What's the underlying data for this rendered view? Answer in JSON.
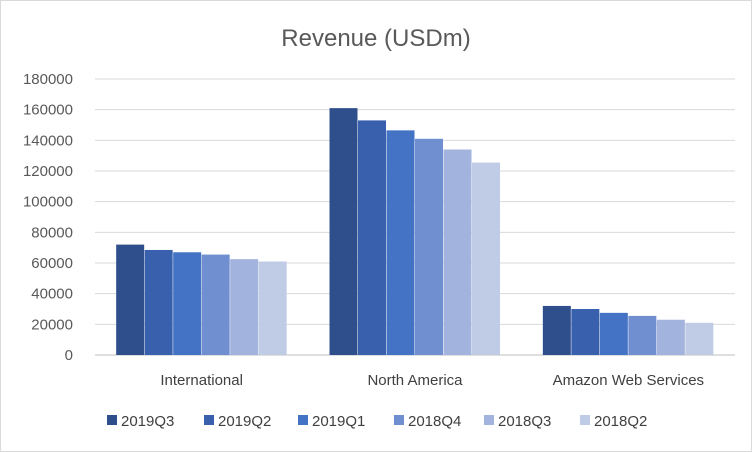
{
  "chart_data": {
    "type": "bar",
    "title": "Revenue (USDm)",
    "xlabel": "",
    "ylabel": "",
    "categories": [
      "International",
      "North America",
      "Amazon Web Services"
    ],
    "ylim": [
      0,
      180000
    ],
    "yticks": [
      "0",
      "20000",
      "40000",
      "60000",
      "80000",
      "100000",
      "120000",
      "140000",
      "160000",
      "180000"
    ],
    "grid": true,
    "legend_position": "bottom",
    "series": [
      {
        "name": "2019Q3",
        "color": "#2f4f8c",
        "values": [
          72000,
          161000,
          32000
        ]
      },
      {
        "name": "2019Q2",
        "color": "#3860ad",
        "values": [
          68500,
          153000,
          30000
        ]
      },
      {
        "name": "2019Q1",
        "color": "#4472c4",
        "values": [
          67000,
          146500,
          27500
        ]
      },
      {
        "name": "2018Q4",
        "color": "#6f8fd0",
        "values": [
          65500,
          141000,
          25500
        ]
      },
      {
        "name": "2018Q3",
        "color": "#a2b4dd",
        "values": [
          62500,
          134000,
          23000
        ]
      },
      {
        "name": "2018Q2",
        "color": "#c0cbe6",
        "values": [
          61000,
          125500,
          21000
        ]
      }
    ]
  }
}
